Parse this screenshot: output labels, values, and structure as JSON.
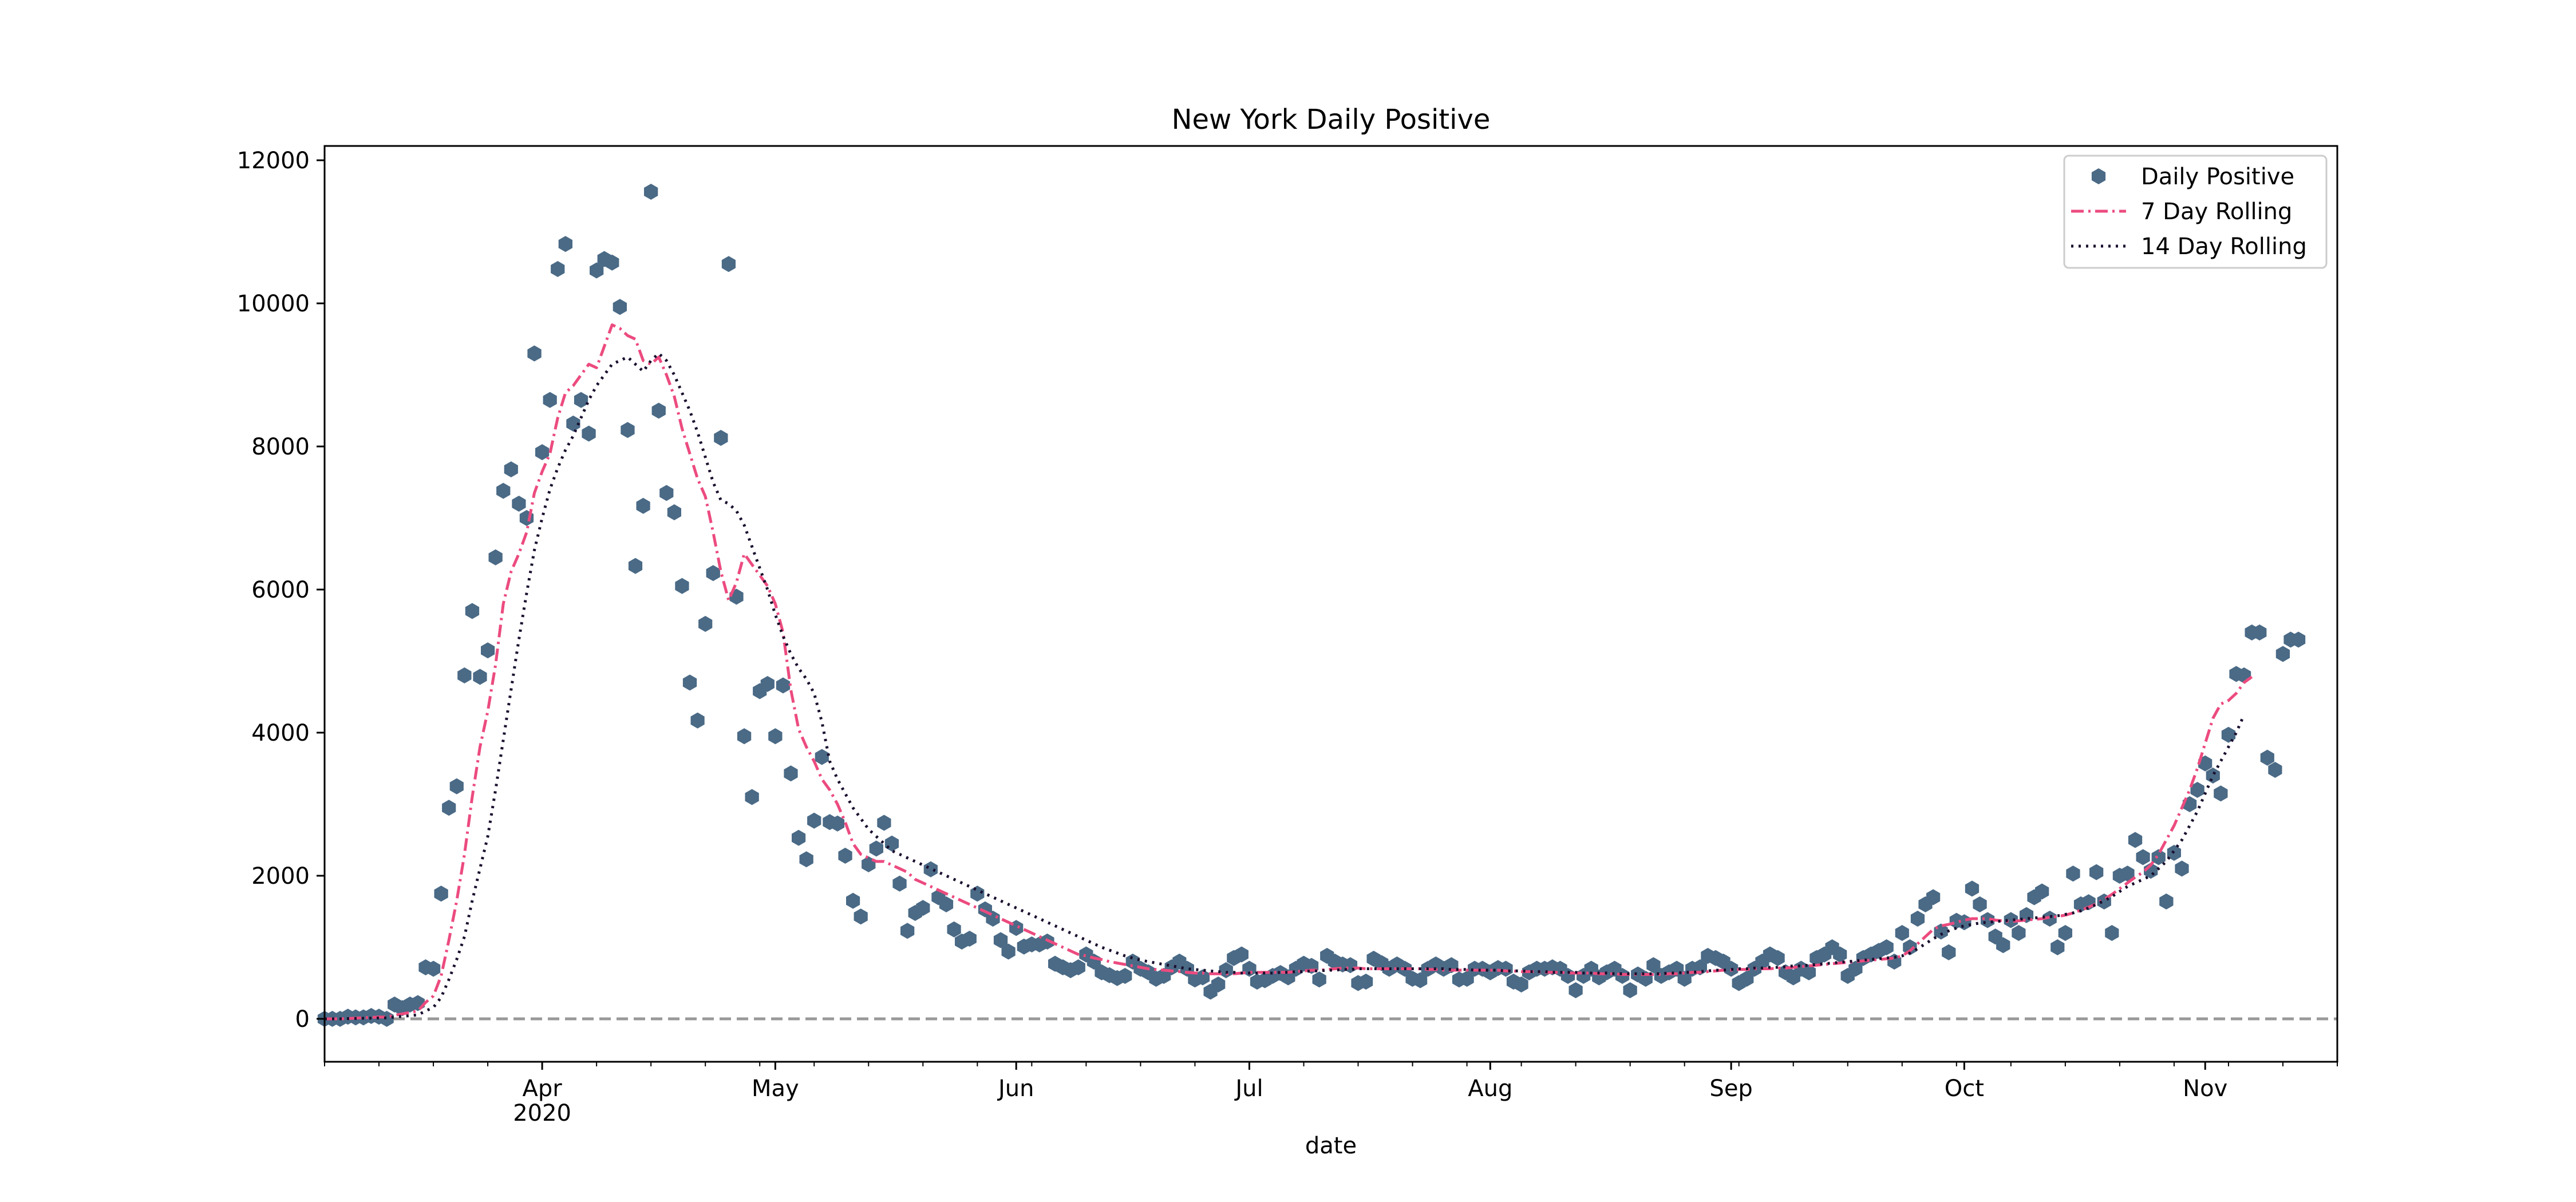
{
  "chart_data": {
    "type": "scatter",
    "title": "New York Daily Positive",
    "xlabel": "date",
    "ylabel": "",
    "x_range": [
      "2020-03-04",
      "2020-11-18"
    ],
    "ylim": [
      -600,
      12200
    ],
    "y_ticks": [
      0,
      2000,
      4000,
      6000,
      8000,
      10000,
      12000
    ],
    "y_tick_labels": [
      "0",
      "2000",
      "4000",
      "6000",
      "8000",
      "10000",
      "12000"
    ],
    "x_ticks": [
      {
        "date": "2020-04-01",
        "label": "Apr",
        "sublabel": "2020"
      },
      {
        "date": "2020-05-01",
        "label": "May",
        "sublabel": ""
      },
      {
        "date": "2020-06-01",
        "label": "Jun",
        "sublabel": ""
      },
      {
        "date": "2020-07-01",
        "label": "Jul",
        "sublabel": ""
      },
      {
        "date": "2020-08-01",
        "label": "Aug",
        "sublabel": ""
      },
      {
        "date": "2020-09-01",
        "label": "Sep",
        "sublabel": ""
      },
      {
        "date": "2020-10-01",
        "label": "Oct",
        "sublabel": ""
      },
      {
        "date": "2020-11-01",
        "label": "Nov",
        "sublabel": ""
      }
    ],
    "grid": false,
    "legend_position": "top-right",
    "reference_line": {
      "y": 0,
      "style": "dashed",
      "color": "#999999"
    },
    "series": [
      {
        "name": "Daily Positive",
        "kind": "scatter",
        "marker": "hexagon",
        "color": "#4a6a86",
        "start_date": "2020-03-04",
        "values": [
          0,
          0,
          0,
          30,
          20,
          20,
          40,
          30,
          0,
          200,
          150,
          200,
          220,
          720,
          700,
          1750,
          2950,
          3250,
          4800,
          5700,
          4780,
          5150,
          6450,
          7380,
          7680,
          7200,
          7000,
          9300,
          7920,
          8650,
          10480,
          10830,
          8320,
          8650,
          8180,
          10460,
          10620,
          10570,
          9950,
          8230,
          6330,
          7170,
          11560,
          8500,
          7350,
          7080,
          6050,
          4700,
          4170,
          5520,
          6230,
          8120,
          10550,
          5900,
          3950,
          3100,
          4580,
          4680,
          3950,
          4660,
          3430,
          2530,
          2230,
          2770,
          3660,
          2750,
          2730,
          2280,
          1650,
          1430,
          2160,
          2380,
          2740,
          2450,
          1890,
          1230,
          1480,
          1550,
          2090,
          1700,
          1600,
          1250,
          1080,
          1120,
          1750,
          1530,
          1400,
          1100,
          940,
          1270,
          1010,
          1040,
          1040,
          1080,
          770,
          720,
          680,
          720,
          900,
          800,
          650,
          610,
          570,
          600,
          800,
          700,
          650,
          560,
          600,
          720,
          800,
          700,
          550,
          580,
          380,
          480,
          680,
          850,
          900,
          700,
          520,
          540,
          600,
          640,
          580,
          700,
          770,
          740,
          550,
          880,
          800,
          760,
          750,
          500,
          520,
          840,
          780,
          700,
          760,
          700,
          560,
          540,
          700,
          760,
          700,
          750,
          550,
          560,
          700,
          700,
          650,
          710,
          700,
          520,
          480,
          650,
          700,
          700,
          720,
          700,
          600,
          400,
          600,
          700,
          580,
          650,
          700,
          600,
          400,
          620,
          560,
          750,
          600,
          650,
          700,
          560,
          700,
          720,
          880,
          850,
          800,
          700,
          500,
          560,
          700,
          800,
          900,
          850,
          650,
          580,
          700,
          650,
          850,
          900,
          1000,
          900,
          600,
          700,
          850,
          900,
          950,
          1000,
          800,
          1200,
          1000,
          1400,
          1600,
          1700,
          1220,
          930,
          1370,
          1350,
          1820,
          1600,
          1380,
          1150,
          1030,
          1380,
          1200,
          1450,
          1700,
          1780,
          1400,
          1000,
          1200,
          2030,
          1600,
          1630,
          2050,
          1640,
          1200,
          2000,
          2030,
          2500,
          2260,
          2070,
          2260,
          1640,
          2320,
          2100,
          3000,
          3200,
          3570,
          3400,
          3150,
          3970,
          4820,
          4800,
          5400,
          5400,
          3650,
          3480,
          5100,
          5300,
          5300
        ]
      },
      {
        "name": "7 Day Rolling",
        "kind": "line",
        "style": "dashdot",
        "color": "#ec4b7f",
        "start_date": "2020-03-04",
        "values": [
          0,
          0,
          0,
          5,
          10,
          15,
          20,
          25,
          25,
          50,
          70,
          90,
          110,
          230,
          320,
          600,
          1100,
          1650,
          2300,
          3100,
          3800,
          4300,
          4950,
          5800,
          6250,
          6500,
          6800,
          7350,
          7650,
          7900,
          8400,
          8750,
          8850,
          9000,
          9150,
          9100,
          9400,
          9700,
          9650,
          9550,
          9500,
          9200,
          9150,
          9250,
          9000,
          8700,
          8250,
          7900,
          7550,
          7300,
          6800,
          6250,
          5850,
          6100,
          6500,
          6350,
          6200,
          6050,
          5800,
          5400,
          4600,
          4050,
          3800,
          3600,
          3350,
          3200,
          3000,
          2750,
          2450,
          2300,
          2250,
          2200,
          2200,
          2150,
          2100,
          2050,
          1950,
          1900,
          1850,
          1800,
          1750,
          1700,
          1650,
          1600,
          1550,
          1500,
          1450,
          1400,
          1350,
          1300,
          1250,
          1200,
          1150,
          1100,
          1050,
          1000,
          950,
          900,
          880,
          850,
          830,
          800,
          780,
          760,
          740,
          720,
          700,
          690,
          680,
          670,
          660,
          650,
          640,
          640,
          630,
          630,
          630,
          630,
          640,
          650,
          650,
          650,
          650,
          650,
          650,
          660,
          670,
          680,
          680,
          690,
          700,
          710,
          710,
          710,
          700,
          700,
          700,
          700,
          700,
          700,
          700,
          700,
          690,
          690,
          680,
          680,
          680,
          680,
          680,
          680,
          680,
          680,
          670,
          670,
          660,
          660,
          660,
          650,
          650,
          650,
          640,
          640,
          640,
          640,
          630,
          630,
          630,
          620,
          620,
          620,
          620,
          620,
          620,
          630,
          630,
          640,
          650,
          650,
          660,
          670,
          680,
          680,
          690,
          690,
          700,
          700,
          700,
          710,
          710,
          720,
          730,
          740,
          750,
          760,
          770,
          780,
          790,
          800,
          810,
          820,
          830,
          840,
          850,
          880,
          950,
          1050,
          1150,
          1250,
          1300,
          1320,
          1350,
          1380,
          1400,
          1400,
          1400,
          1380,
          1370,
          1360,
          1370,
          1380,
          1390,
          1400,
          1420,
          1430,
          1450,
          1480,
          1520,
          1560,
          1610,
          1670,
          1740,
          1820,
          1900,
          1980,
          2050,
          2150,
          2300,
          2500,
          2700,
          2950,
          3200,
          3500,
          3850,
          4200,
          4400,
          4450,
          4550,
          4700,
          4780
        ]
      },
      {
        "name": "14 Day Rolling",
        "kind": "line",
        "style": "dotted",
        "color": "#1a0f2e",
        "start_date": "2020-03-04",
        "values": [
          0,
          0,
          0,
          3,
          5,
          8,
          10,
          12,
          13,
          25,
          35,
          45,
          55,
          110,
          160,
          300,
          550,
          830,
          1150,
          1650,
          2100,
          2550,
          3200,
          3900,
          4600,
          5300,
          5950,
          6550,
          7000,
          7400,
          7700,
          7950,
          8150,
          8400,
          8650,
          8850,
          9000,
          9150,
          9200,
          9250,
          9150,
          9050,
          9200,
          9300,
          9200,
          9000,
          8750,
          8500,
          8200,
          7850,
          7500,
          7250,
          7200,
          7100,
          6900,
          6600,
          6300,
          6000,
          5650,
          5350,
          5100,
          4900,
          4750,
          4550,
          4150,
          3600,
          3350,
          3150,
          2950,
          2800,
          2650,
          2550,
          2450,
          2350,
          2300,
          2250,
          2200,
          2150,
          2100,
          2050,
          2000,
          1950,
          1900,
          1850,
          1800,
          1750,
          1700,
          1650,
          1600,
          1550,
          1500,
          1450,
          1400,
          1350,
          1300,
          1250,
          1200,
          1150,
          1100,
          1050,
          1000,
          960,
          920,
          880,
          850,
          820,
          800,
          780,
          760,
          740,
          720,
          700,
          690,
          680,
          670,
          660,
          650,
          650,
          640,
          640,
          640,
          640,
          640,
          650,
          650,
          660,
          660,
          670,
          670,
          680,
          680,
          690,
          690,
          700,
          700,
          700,
          700,
          700,
          700,
          700,
          700,
          700,
          700,
          700,
          700,
          690,
          690,
          690,
          680,
          680,
          680,
          680,
          670,
          670,
          670,
          660,
          660,
          660,
          650,
          650,
          650,
          650,
          640,
          640,
          640,
          640,
          630,
          630,
          630,
          630,
          630,
          630,
          630,
          640,
          640,
          650,
          650,
          660,
          670,
          680,
          680,
          690,
          700,
          700,
          710,
          710,
          720,
          720,
          730,
          740,
          740,
          750,
          760,
          770,
          780,
          790,
          800,
          810,
          820,
          830,
          840,
          850,
          860,
          880,
          920,
          980,
          1050,
          1120,
          1180,
          1230,
          1270,
          1300,
          1320,
          1340,
          1350,
          1360,
          1370,
          1380,
          1390,
          1400,
          1410,
          1420,
          1430,
          1440,
          1460,
          1480,
          1510,
          1550,
          1600,
          1650,
          1710,
          1780,
          1850,
          1900,
          1950,
          2000,
          2100,
          2200,
          2350,
          2500,
          2700,
          2900,
          3150,
          3400,
          3600,
          3800,
          4000,
          4250
        ]
      }
    ]
  }
}
